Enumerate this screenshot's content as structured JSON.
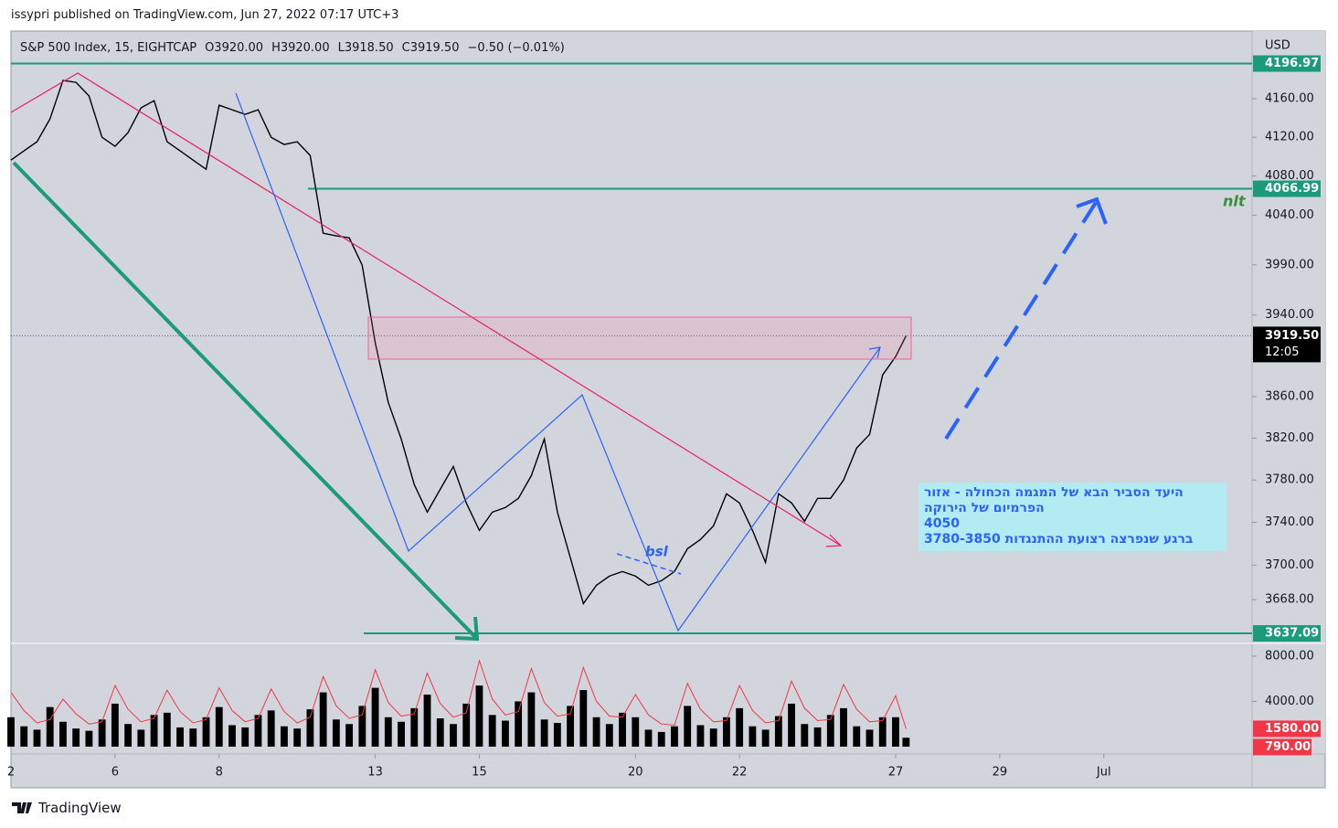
{
  "header": {
    "text": "issypri published on TradingView.com, Jun 27, 2022 07:17 UTC+3"
  },
  "chart_data": {
    "type": "line",
    "title": "S&P 500 Index, 15, EIGHTCAP",
    "ohlc": [
      "O3920.00",
      "H3920.00",
      "L3918.50",
      "C3919.50",
      "−0.50 (−0.01%)"
    ],
    "currency": "USD",
    "log_scale": true,
    "grid": false,
    "color": "#000000",
    "x": [
      0,
      0.25,
      0.5,
      0.75,
      1,
      1.25,
      1.5,
      1.75,
      2,
      2.25,
      2.5,
      2.75,
      3,
      3.25,
      3.5,
      3.75,
      4,
      4.25,
      4.5,
      4.75,
      5,
      5.25,
      5.5,
      5.75,
      6,
      6.25,
      6.5,
      6.75,
      7,
      7.25,
      7.5,
      7.75,
      8,
      8.25,
      8.5,
      8.75,
      9,
      9.25,
      9.5,
      9.75,
      10,
      10.25,
      10.5,
      10.75,
      11,
      11.25,
      11.5,
      11.75,
      12,
      12.25,
      12.5,
      12.75,
      13,
      13.25,
      13.5,
      13.75,
      14,
      14.25,
      14.5,
      14.75,
      15,
      15.25,
      15.5,
      15.75,
      16,
      16.25,
      16.5,
      16.75,
      17,
      17.2
    ],
    "values": [
      4096.4,
      4105.9,
      4115.3,
      4139.0,
      4179.2,
      4177.2,
      4162.9,
      4120.0,
      4110.6,
      4124.8,
      4150.5,
      4158.1,
      4115.3,
      4105.9,
      4096.4,
      4087.0,
      4153.3,
      4148.5,
      4143.8,
      4148.5,
      4120.0,
      4112.5,
      4115.3,
      4101.2,
      4021.8,
      4019.1,
      4017.2,
      3989.6,
      3912.5,
      3854.5,
      3819.2,
      3775.6,
      3749.6,
      3771.2,
      3792.9,
      3758.3,
      3732.4,
      3749.6,
      3753.9,
      3762.6,
      3784.2,
      3819.2,
      3749.6,
      3706.8,
      3664.4,
      3681.3,
      3689.8,
      3694.0,
      3689.8,
      3681.3,
      3685.6,
      3694.0,
      3715.3,
      3723.9,
      3736.7,
      3766.9,
      3758.3,
      3732.4,
      3702.5,
      3766.9,
      3758.3,
      3741.0,
      3762.6,
      3762.6,
      3779.9,
      3810.4,
      3823.6,
      3881.1,
      3899.0,
      3919.5
    ],
    "xlim": [
      0,
      23.85
    ],
    "xticks": [
      {
        "value": 0,
        "label": "2"
      },
      {
        "value": 2,
        "label": "6"
      },
      {
        "value": 4,
        "label": "8"
      },
      {
        "value": 7,
        "label": "13"
      },
      {
        "value": 9,
        "label": "15"
      },
      {
        "value": 12,
        "label": "20"
      },
      {
        "value": 14,
        "label": "22"
      },
      {
        "value": 17,
        "label": "27"
      },
      {
        "value": 19,
        "label": "29"
      },
      {
        "value": 21,
        "label": "Jul"
      }
    ],
    "ylim": [
      3631.3,
      4230.4
    ],
    "yticks": [
      {
        "value": 4160,
        "label": "4160.00"
      },
      {
        "value": 4120,
        "label": "4120.00"
      },
      {
        "value": 4080,
        "label": "4080.00"
      },
      {
        "value": 4040,
        "label": "4040.00"
      },
      {
        "value": 3990,
        "label": "3990.00"
      },
      {
        "value": 3940,
        "label": "3940.00"
      },
      {
        "value": 3860,
        "label": "3860.00"
      },
      {
        "value": 3820,
        "label": "3820.00"
      },
      {
        "value": 3780,
        "label": "3780.00"
      },
      {
        "value": 3740,
        "label": "3740.00"
      },
      {
        "value": 3700,
        "label": "3700.00"
      },
      {
        "value": 3668,
        "label": "3668.00"
      }
    ],
    "price_lines": [
      {
        "value": 4196.97,
        "color": "#1b9a7c"
      },
      {
        "value": 4066.99,
        "color": "#1b9a7c"
      },
      {
        "value": 3637.09,
        "color": "#1b9a7c"
      }
    ],
    "last_price": {
      "value": 3919.5,
      "label": "3919.50",
      "countdown": "12:05"
    },
    "volume": {
      "color": "#000000",
      "ma_color": "#f23645",
      "values": [
        2600,
        1800,
        1500,
        3500,
        2200,
        1600,
        1400,
        2400,
        3800,
        2000,
        1500,
        2800,
        3000,
        1700,
        1600,
        2600,
        3500,
        1900,
        1700,
        2800,
        3200,
        1800,
        1600,
        3300,
        4800,
        2400,
        2000,
        3600,
        5200,
        2600,
        2200,
        3400,
        4600,
        2500,
        2000,
        3800,
        5400,
        2800,
        2300,
        4000,
        4800,
        2400,
        2100,
        3600,
        5000,
        2600,
        2000,
        3000,
        2600,
        1500,
        1300,
        1800,
        3600,
        1900,
        1600,
        2600,
        3400,
        1800,
        1500,
        2700,
        3800,
        2000,
        1700,
        2800,
        3400,
        1800,
        1500,
        2600,
        2600,
        790
      ],
      "ma": [
        4800,
        3200,
        2100,
        2400,
        4200,
        2900,
        2000,
        2200,
        5400,
        3300,
        2200,
        2500,
        5000,
        3100,
        2100,
        2400,
        5200,
        3200,
        2200,
        2500,
        5100,
        3100,
        2100,
        2600,
        6200,
        3600,
        2500,
        2800,
        6800,
        3900,
        2700,
        2900,
        6500,
        3800,
        2600,
        3000,
        7600,
        4200,
        2800,
        3100,
        6900,
        3900,
        2700,
        2900,
        7000,
        4000,
        2700,
        2600,
        4600,
        2800,
        2000,
        1900,
        5600,
        3300,
        2200,
        2300,
        5400,
        3200,
        2100,
        2300,
        5800,
        3400,
        2300,
        2400,
        5500,
        3300,
        2200,
        2300,
        4500,
        1580
      ],
      "last_label": "790.00",
      "ma_last_label": "1580.00",
      "ylim": [
        0,
        8480
      ],
      "yticks": [
        {
          "value": 8000,
          "label": "8000.00"
        },
        {
          "value": 4000,
          "label": "4000.00"
        }
      ]
    },
    "annotations": {
      "bsl": "bsl",
      "nlt": "nlt",
      "note": [
        "היעד הסביר הבא של המגמה הכחולה - אזור",
        "הפרמיום של הירוקה",
        "4050",
        "ברגע שנפרצה רצועת ההתנגדות 3780-3850"
      ]
    }
  },
  "footer": {
    "brand": "TradingView"
  }
}
